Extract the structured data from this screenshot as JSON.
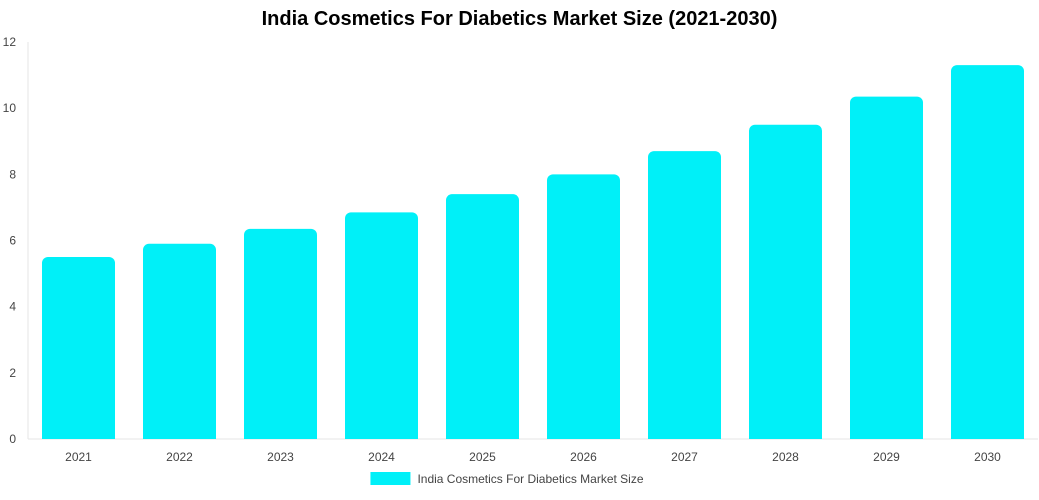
{
  "chart_data": {
    "type": "bar",
    "title": "India Cosmetics For Diabetics Market Size (2021-2030)",
    "xlabel": "",
    "ylabel": "",
    "categories": [
      "2021",
      "2022",
      "2023",
      "2024",
      "2025",
      "2026",
      "2027",
      "2028",
      "2029",
      "2030"
    ],
    "series": [
      {
        "name": "India Cosmetics For Diabetics Market Size",
        "color": "#00f0f8",
        "values": [
          5.5,
          5.9,
          6.35,
          6.85,
          7.4,
          8.0,
          8.7,
          9.5,
          10.35,
          11.3
        ]
      }
    ],
    "ylim": [
      0,
      12
    ],
    "yticks": [
      "0",
      "2",
      "4",
      "6",
      "8",
      "10",
      "12"
    ],
    "grid": false,
    "legend": "bottom-center"
  }
}
